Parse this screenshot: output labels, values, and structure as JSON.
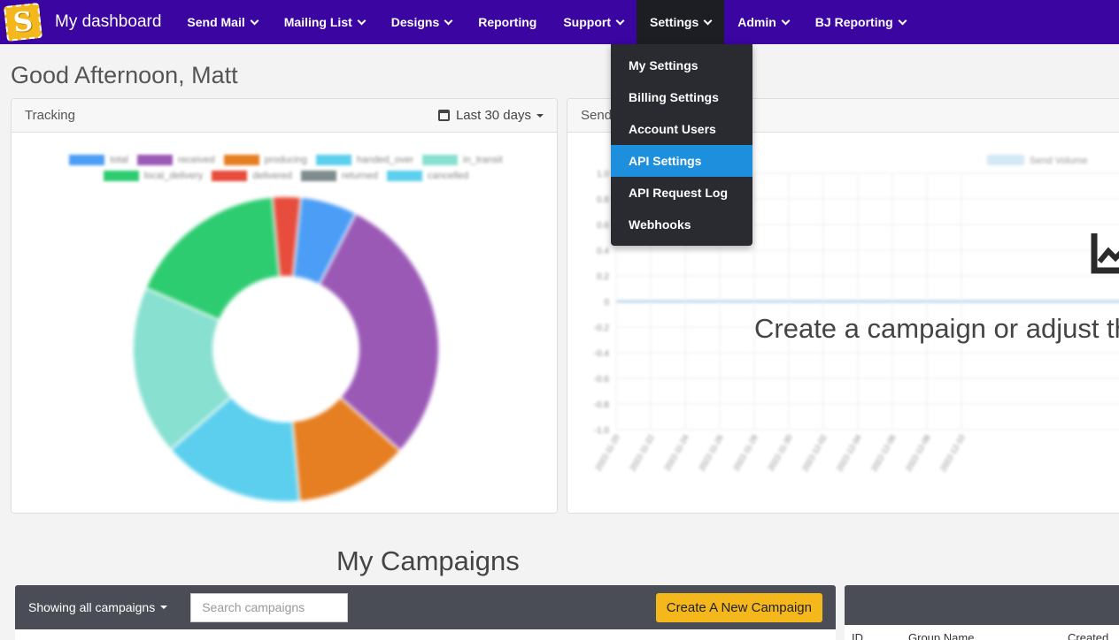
{
  "brand": "My dashboard",
  "logo_letter": "S",
  "nav": [
    {
      "label": "Send Mail",
      "dropdown": true
    },
    {
      "label": "Mailing List",
      "dropdown": true
    },
    {
      "label": "Designs",
      "dropdown": true
    },
    {
      "label": "Reporting",
      "dropdown": false
    },
    {
      "label": "Support",
      "dropdown": true
    },
    {
      "label": "Settings",
      "dropdown": true,
      "active": true
    },
    {
      "label": "Admin",
      "dropdown": true
    },
    {
      "label": "BJ Reporting",
      "dropdown": true
    }
  ],
  "settings_menu": [
    {
      "label": "My Settings"
    },
    {
      "label": "Billing Settings"
    },
    {
      "label": "Account Users"
    },
    {
      "label": "API Settings",
      "highlighted": true
    },
    {
      "label": "API Request Log"
    },
    {
      "label": "Webhooks"
    }
  ],
  "greeting": "Good Afternoon, Matt",
  "tracking": {
    "title": "Tracking",
    "date_filter": "Last 30 days",
    "legend": [
      {
        "name": "total",
        "color": "#4b9df5"
      },
      {
        "name": "received",
        "color": "#9b59b6"
      },
      {
        "name": "producing",
        "color": "#e67e22"
      },
      {
        "name": "handed_over",
        "color": "#5ccfee"
      },
      {
        "name": "in_transit",
        "color": "#88e0d0"
      },
      {
        "name": "local_delivery",
        "color": "#2ecc71"
      },
      {
        "name": "delivered",
        "color": "#e74c3c"
      },
      {
        "name": "returned",
        "color": "#7f8c8d"
      },
      {
        "name": "cancelled",
        "color": "#5ccfee"
      }
    ]
  },
  "chart_data": {
    "type": "pie",
    "categories": [
      "total",
      "received",
      "producing",
      "handed_over",
      "in_transit",
      "local_delivery",
      "delivered"
    ],
    "values": [
      6,
      29,
      12,
      15,
      18,
      17,
      3
    ],
    "colors": [
      "#4b9df5",
      "#9b59b6",
      "#e67e22",
      "#5ccfee",
      "#88e0d0",
      "#2ecc71",
      "#e74c3c"
    ]
  },
  "send_volume": {
    "title": "Send",
    "legend_label": "Send Volume",
    "y_ticks": [
      "1.0",
      "0.8",
      "0.6",
      "0.4",
      "0.2",
      "0",
      "-0.2",
      "-0.4",
      "-0.6",
      "-0.8",
      "-1.0"
    ],
    "x_ticks": [
      "2022-11-20",
      "2022-11-22",
      "2022-11-24",
      "2022-11-26",
      "2022-11-28",
      "2022-11-30",
      "2022-12-02",
      "2022-12-04",
      "2022-12-06",
      "2022-12-08",
      "2022-12-10"
    ],
    "empty_message": "Create a campaign or adjust the"
  },
  "campaigns": {
    "title": "My Campaigns",
    "filter_label": "Showing all campaigns",
    "search_placeholder": "Search campaigns",
    "create_button": "Create A New Campaign"
  },
  "right_table": {
    "col_id": "ID",
    "col_group": "Group Name",
    "col_created": "Created"
  }
}
